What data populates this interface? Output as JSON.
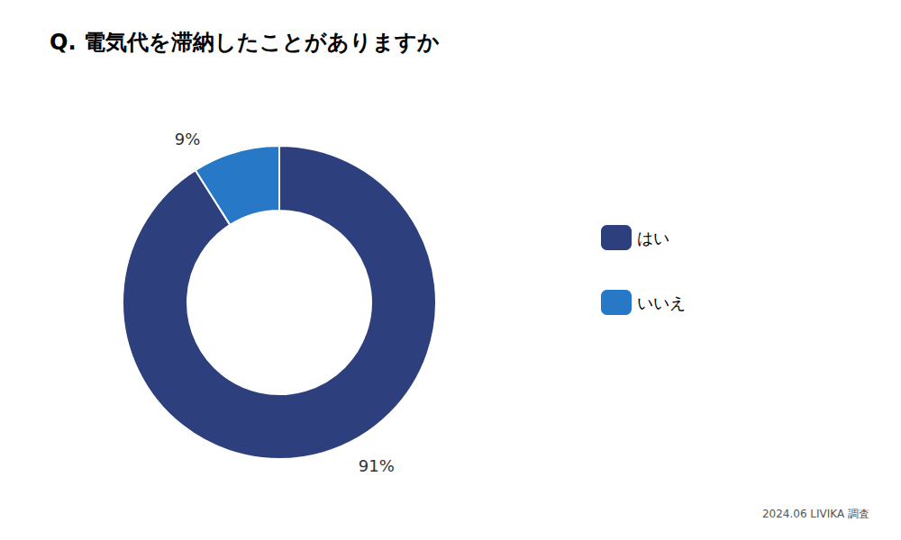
{
  "chart_data": {
    "type": "pie",
    "title": "Q. 電気代を滞納したことがありますか",
    "categories": [
      "はい",
      "いいえ"
    ],
    "values": [
      91,
      9
    ],
    "value_labels": [
      "91%",
      "9%"
    ],
    "colors": [
      "#2d3f7c",
      "#2878c8"
    ],
    "data_labels": true,
    "legend": "right",
    "annotations": [
      "2024.06 LIVIKA 調査"
    ]
  }
}
